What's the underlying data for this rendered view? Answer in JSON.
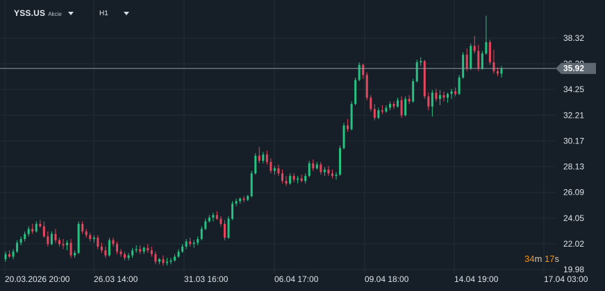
{
  "header": {
    "symbol": "YSS.US",
    "instrument_type": "Akcie",
    "timeframe": "H1",
    "dropdown_icon": "chevron-down-icon"
  },
  "timer": {
    "minutes": "34",
    "minutes_unit": "m",
    "seconds": "17",
    "seconds_unit": "s"
  },
  "colors": {
    "background": "#161f27",
    "grid": "#222c36",
    "axis_text": "#dfe4e9",
    "bull": "#26c281",
    "bear": "#e5465e",
    "price_line": "#8f99a3",
    "price_tag": "#5d6872",
    "timer": "#f7931a"
  },
  "chart_data": {
    "type": "candlestick",
    "symbol": "YSS.US",
    "timeframe": "H1",
    "y_ticks": [
      "38.32",
      "36.29",
      "34.25",
      "32.21",
      "30.17",
      "28.13",
      "26.09",
      "24.05",
      "22.02",
      "19.98"
    ],
    "ylim": [
      19.98,
      38.32
    ],
    "x_ticks": [
      "20.03.2026 20:00",
      "26.03 14:00",
      "31.03 16:00",
      "06.04 17:00",
      "09.04 18:00",
      "14.04 19:00",
      "17.04 03:00"
    ],
    "current_price": "35.92",
    "candles": [
      [
        20.8,
        21.4,
        20.6,
        21.2
      ],
      [
        21.2,
        21.5,
        20.9,
        21.0
      ],
      [
        21.0,
        21.6,
        20.8,
        21.4
      ],
      [
        21.4,
        22.3,
        21.3,
        22.1
      ],
      [
        22.1,
        22.6,
        21.9,
        22.4
      ],
      [
        22.4,
        23.0,
        22.2,
        22.8
      ],
      [
        22.8,
        23.4,
        22.6,
        23.2
      ],
      [
        23.2,
        23.6,
        22.8,
        23.0
      ],
      [
        23.0,
        23.8,
        22.9,
        23.6
      ],
      [
        23.6,
        23.9,
        23.3,
        23.4
      ],
      [
        23.4,
        23.8,
        22.5,
        22.6
      ],
      [
        22.6,
        23.0,
        21.8,
        22.0
      ],
      [
        22.0,
        23.0,
        21.9,
        22.8
      ],
      [
        22.8,
        23.2,
        22.1,
        22.3
      ],
      [
        22.3,
        22.5,
        21.8,
        22.0
      ],
      [
        22.0,
        22.4,
        21.6,
        21.9
      ],
      [
        21.9,
        22.3,
        21.5,
        22.1
      ],
      [
        22.1,
        22.4,
        20.9,
        21.1
      ],
      [
        21.1,
        21.5,
        20.9,
        21.3
      ],
      [
        21.3,
        23.8,
        21.2,
        23.6
      ],
      [
        23.6,
        23.8,
        22.8,
        23.0
      ],
      [
        23.0,
        23.2,
        22.5,
        22.7
      ],
      [
        22.7,
        22.9,
        22.2,
        22.4
      ],
      [
        22.4,
        22.7,
        22.1,
        22.5
      ],
      [
        22.5,
        22.7,
        21.6,
        21.8
      ],
      [
        21.8,
        22.1,
        21.3,
        21.5
      ],
      [
        21.5,
        21.8,
        20.9,
        21.1
      ],
      [
        21.1,
        22.5,
        21.0,
        22.3
      ],
      [
        22.3,
        22.5,
        21.8,
        22.0
      ],
      [
        22.0,
        22.2,
        21.2,
        21.4
      ],
      [
        21.4,
        21.6,
        21.0,
        21.2
      ],
      [
        21.2,
        21.4,
        20.7,
        20.9
      ],
      [
        20.9,
        21.3,
        20.7,
        21.1
      ],
      [
        21.1,
        21.7,
        20.9,
        21.5
      ],
      [
        21.5,
        21.9,
        21.3,
        21.6
      ],
      [
        21.6,
        21.9,
        21.2,
        21.4
      ],
      [
        21.4,
        21.8,
        21.2,
        21.7
      ],
      [
        21.7,
        22.0,
        21.3,
        21.5
      ],
      [
        21.5,
        21.8,
        21.0,
        21.2
      ],
      [
        21.2,
        21.4,
        20.4,
        20.6
      ],
      [
        20.6,
        20.9,
        20.4,
        20.8
      ],
      [
        20.8,
        21.1,
        20.3,
        20.5
      ],
      [
        20.5,
        20.9,
        20.3,
        20.6
      ],
      [
        20.6,
        20.9,
        20.4,
        20.7
      ],
      [
        20.7,
        21.2,
        20.6,
        21.0
      ],
      [
        21.0,
        21.6,
        20.9,
        21.4
      ],
      [
        21.4,
        22.0,
        21.3,
        21.8
      ],
      [
        21.8,
        22.4,
        21.6,
        22.2
      ],
      [
        22.2,
        22.5,
        21.8,
        22.0
      ],
      [
        22.0,
        22.3,
        21.7,
        22.1
      ],
      [
        22.1,
        22.6,
        21.9,
        22.4
      ],
      [
        22.4,
        23.4,
        22.3,
        23.2
      ],
      [
        23.2,
        24.0,
        23.1,
        23.8
      ],
      [
        23.8,
        24.3,
        23.7,
        24.1
      ],
      [
        24.1,
        24.5,
        23.8,
        24.3
      ],
      [
        24.3,
        24.6,
        23.9,
        24.0
      ],
      [
        24.0,
        24.2,
        23.4,
        23.6
      ],
      [
        23.6,
        23.9,
        22.3,
        22.5
      ],
      [
        22.5,
        24.2,
        22.4,
        24.0
      ],
      [
        24.0,
        25.4,
        23.9,
        25.2
      ],
      [
        25.2,
        25.6,
        25.0,
        25.4
      ],
      [
        25.4,
        25.7,
        25.2,
        25.6
      ],
      [
        25.6,
        25.8,
        25.3,
        25.5
      ],
      [
        25.5,
        25.9,
        25.4,
        25.8
      ],
      [
        25.8,
        27.8,
        25.7,
        27.6
      ],
      [
        27.6,
        29.2,
        27.5,
        29.0
      ],
      [
        29.0,
        29.7,
        28.4,
        28.6
      ],
      [
        28.6,
        29.3,
        28.4,
        29.1
      ],
      [
        29.1,
        29.4,
        28.3,
        28.5
      ],
      [
        28.5,
        28.8,
        27.6,
        27.8
      ],
      [
        27.8,
        28.2,
        27.5,
        28.0
      ],
      [
        28.0,
        28.3,
        27.4,
        27.6
      ],
      [
        27.6,
        27.9,
        26.8,
        27.0
      ],
      [
        27.0,
        27.4,
        26.6,
        26.8
      ],
      [
        26.8,
        27.6,
        26.7,
        27.4
      ],
      [
        27.4,
        27.6,
        26.9,
        27.1
      ],
      [
        27.1,
        27.4,
        26.8,
        27.2
      ],
      [
        27.2,
        27.5,
        26.9,
        27.0
      ],
      [
        27.0,
        27.6,
        26.8,
        27.4
      ],
      [
        27.4,
        28.6,
        27.3,
        28.4
      ],
      [
        28.4,
        28.7,
        27.8,
        28.0
      ],
      [
        28.0,
        28.5,
        27.9,
        28.3
      ],
      [
        28.3,
        28.5,
        27.5,
        27.7
      ],
      [
        27.7,
        28.1,
        27.4,
        27.9
      ],
      [
        27.9,
        28.2,
        27.4,
        27.6
      ],
      [
        27.6,
        27.9,
        27.2,
        27.4
      ],
      [
        27.4,
        27.7,
        27.1,
        27.5
      ],
      [
        27.5,
        29.8,
        27.4,
        29.6
      ],
      [
        29.6,
        31.6,
        29.5,
        31.4
      ],
      [
        31.4,
        31.9,
        30.9,
        31.1
      ],
      [
        31.1,
        33.3,
        31.0,
        33.1
      ],
      [
        33.1,
        35.2,
        33.0,
        35.0
      ],
      [
        35.0,
        36.4,
        34.9,
        36.2
      ],
      [
        36.2,
        36.3,
        35.1,
        35.4
      ],
      [
        35.4,
        35.6,
        33.4,
        33.6
      ],
      [
        33.6,
        33.8,
        32.5,
        32.7
      ],
      [
        32.7,
        33.1,
        31.8,
        32.0
      ],
      [
        32.0,
        32.8,
        31.9,
        32.6
      ],
      [
        32.6,
        33.0,
        32.3,
        32.5
      ],
      [
        32.5,
        33.0,
        32.4,
        32.8
      ],
      [
        32.8,
        33.3,
        32.6,
        33.1
      ],
      [
        33.1,
        33.3,
        32.7,
        32.9
      ],
      [
        32.9,
        33.6,
        32.8,
        33.4
      ],
      [
        33.4,
        33.7,
        32.0,
        32.2
      ],
      [
        32.2,
        33.7,
        32.1,
        33.5
      ],
      [
        33.5,
        33.8,
        33.1,
        33.3
      ],
      [
        33.3,
        35.1,
        33.2,
        34.9
      ],
      [
        34.9,
        36.6,
        34.8,
        36.4
      ],
      [
        36.4,
        36.8,
        36.1,
        36.5
      ],
      [
        36.5,
        36.6,
        33.5,
        33.7
      ],
      [
        33.7,
        34.0,
        32.6,
        32.9
      ],
      [
        32.9,
        34.2,
        32.1,
        34.0
      ],
      [
        34.0,
        34.3,
        33.3,
        33.5
      ],
      [
        33.5,
        34.2,
        33.0,
        33.8
      ],
      [
        33.8,
        34.1,
        33.3,
        33.6
      ],
      [
        33.6,
        34.0,
        33.2,
        33.9
      ],
      [
        33.9,
        34.3,
        33.5,
        34.1
      ],
      [
        34.1,
        34.4,
        33.7,
        33.9
      ],
      [
        33.9,
        35.4,
        33.8,
        35.2
      ],
      [
        35.2,
        37.2,
        35.1,
        37.0
      ],
      [
        37.0,
        37.5,
        35.7,
        35.9
      ],
      [
        35.9,
        37.9,
        35.8,
        37.7
      ],
      [
        37.7,
        38.5,
        37.1,
        37.3
      ],
      [
        37.3,
        37.8,
        35.7,
        35.9
      ],
      [
        35.9,
        37.3,
        35.8,
        37.1
      ],
      [
        37.1,
        40.1,
        37.0,
        38.0
      ],
      [
        38.0,
        38.2,
        36.2,
        36.4
      ],
      [
        36.4,
        37.4,
        35.5,
        35.7
      ],
      [
        35.7,
        36.0,
        35.3,
        35.5
      ],
      [
        35.5,
        36.1,
        35.2,
        35.92
      ]
    ]
  }
}
